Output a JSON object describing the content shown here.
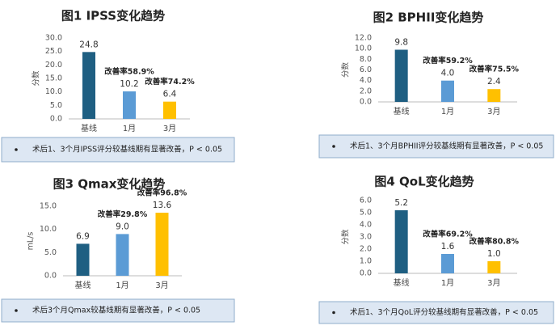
{
  "chart_data": [
    {
      "type": "bar",
      "title": "图1  IPSS变化趋势",
      "y_label": "分数",
      "categories": [
        "基线",
        "1月",
        "3月"
      ],
      "values": [
        24.8,
        10.2,
        6.4
      ],
      "colors": [
        "#1f5f82",
        "#5b9bd5",
        "#ffc000"
      ],
      "annotations": [
        "改善率58.9%",
        "改善率74.2%"
      ],
      "ylim": [
        0,
        30
      ],
      "yticks": [
        {
          "value": 0,
          "label": "0.0"
        },
        {
          "value": 5,
          "label": "5.0"
        },
        {
          "value": 10,
          "label": "10.0"
        },
        {
          "value": 15,
          "label": "15.0"
        },
        {
          "value": 20,
          "label": "20.0"
        },
        {
          "value": 25,
          "label": "25.0"
        },
        {
          "value": 30,
          "label": "30.0"
        }
      ],
      "note": "术后1、3个月IPSS评分较基线期有显著改善，P < 0.05"
    },
    {
      "type": "bar",
      "title": "图2  BPHII变化趋势",
      "y_label": "分数",
      "categories": [
        "基线",
        "1月",
        "3月"
      ],
      "values": [
        9.8,
        4,
        2.4
      ],
      "value_labels": [
        "9.8",
        "4.0",
        "2.4"
      ],
      "colors": [
        "#1f5f82",
        "#5b9bd5",
        "#ffc000"
      ],
      "annotations": [
        "改善率59.2%",
        "改善率75.5%"
      ],
      "ylim": [
        0,
        12
      ],
      "yticks": [
        {
          "value": 0,
          "label": "0.0"
        },
        {
          "value": 2,
          "label": "2.0"
        },
        {
          "value": 4,
          "label": "4.0"
        },
        {
          "value": 6,
          "label": "6.0"
        },
        {
          "value": 8,
          "label": "8.0"
        },
        {
          "value": 10,
          "label": "10.0"
        },
        {
          "value": 12,
          "label": "12.0"
        }
      ],
      "note": "术后1、3个月BPHII评分较基线期有显著改善，P < 0.05"
    },
    {
      "type": "bar",
      "title": "图3  Qmax变化趋势",
      "y_label": "mL/s",
      "categories": [
        "基线",
        "1月",
        "3月"
      ],
      "values": [
        6.9,
        9,
        13.6
      ],
      "value_labels": [
        "6.9",
        "9.0",
        "13.6"
      ],
      "colors": [
        "#1f5f82",
        "#5b9bd5",
        "#ffc000"
      ],
      "annotations": [
        "改善率29.8%",
        "改善率96.8%"
      ],
      "ylim": [
        0,
        15
      ],
      "yticks": [
        {
          "value": 0,
          "label": "0.0"
        },
        {
          "value": 5,
          "label": "5.0"
        },
        {
          "value": 10,
          "label": "10.0"
        },
        {
          "value": 15,
          "label": "15.0"
        }
      ],
      "note": "术后3个月Qmax较基线期有显著改善，P < 0.05"
    },
    {
      "type": "bar",
      "title": "图4  QoL变化趋势",
      "y_label": "分数",
      "categories": [
        "基线",
        "1月",
        "3月"
      ],
      "values": [
        5.2,
        1.6,
        1
      ],
      "value_labels": [
        "5.2",
        "1.6",
        "1.0"
      ],
      "colors": [
        "#1f5f82",
        "#5b9bd5",
        "#ffc000"
      ],
      "annotations": [
        "改善率69.2%",
        "改善率80.8%"
      ],
      "ylim": [
        0,
        6
      ],
      "yticks": [
        {
          "value": 0,
          "label": "0.0"
        },
        {
          "value": 1,
          "label": "1.0"
        },
        {
          "value": 2,
          "label": "2.0"
        },
        {
          "value": 3,
          "label": "3.0"
        },
        {
          "value": 4,
          "label": "4.0"
        },
        {
          "value": 5,
          "label": "5.0"
        },
        {
          "value": 6,
          "label": "6.0"
        }
      ],
      "note": "术后1、3个月QoL评分较基线期有显著改善，P < 0.05"
    }
  ]
}
